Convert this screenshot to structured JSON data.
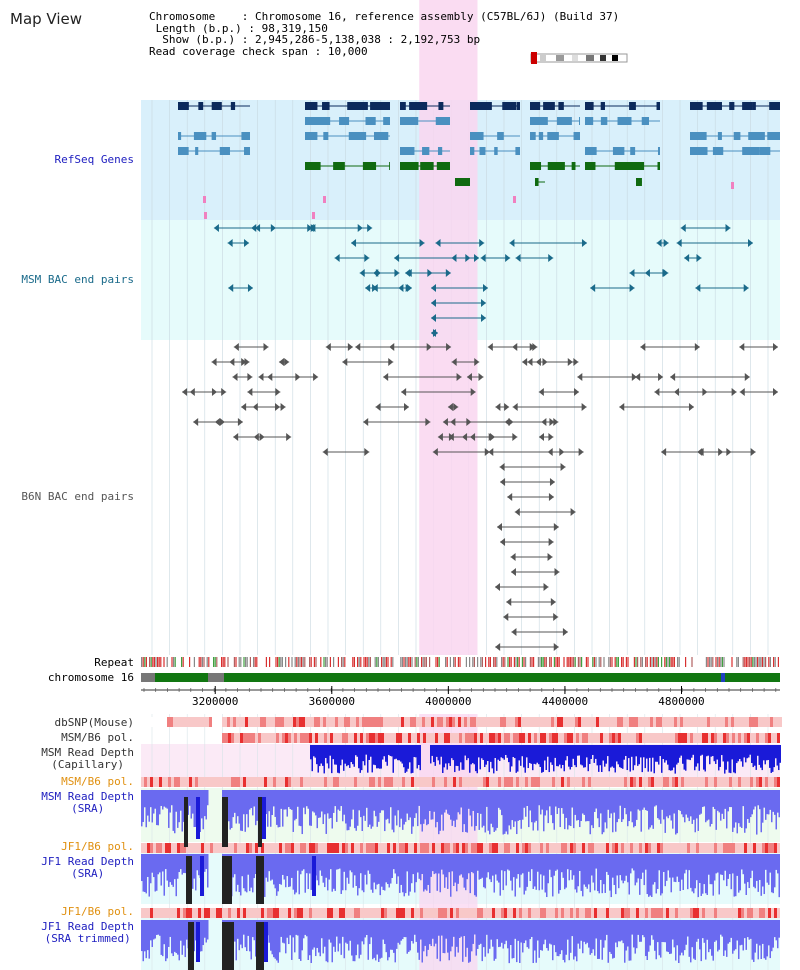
{
  "title": "Map View",
  "info": {
    "chromosome_label": "Chromosome",
    "chromosome_value": "Chromosome 16, reference assembly (C57BL/6J) (Build 37)",
    "length_label": "Length (b.p.)",
    "length_value": "98,319,150",
    "show_label": "Show (b.p.)",
    "show_value": "2,945,286-5,138,038 : 2,192,753 bp",
    "span_label": "Read coverage check span",
    "span_value": "10,000"
  },
  "labels": {
    "refseq": "RefSeq Genes",
    "msm_bac": "MSM BAC end pairs",
    "b6n_bac": "B6N BAC end pairs",
    "repeat": "Repeat",
    "chromosome": "chromosome 16",
    "dbsnp": "dbSNP(Mouse)",
    "msm_pol1": "MSM/B6 pol.",
    "msm_depth_cap_1": "MSM Read Depth",
    "msm_depth_cap_2": "(Capillary)",
    "msm_pol2": "MSM/B6 pol.",
    "msm_depth_sra_1": "MSM Read Depth",
    "msm_depth_sra_2": "(SRA)",
    "jf1_pol1": "JF1/B6 pol.",
    "jf1_depth_sra_1": "JF1 Read Depth",
    "jf1_depth_sra_2": "(SRA)",
    "jf1_pol2": "JF1/B6 pol.",
    "jf1_depth_trim_1": "JF1 Read Depth",
    "jf1_depth_trim_2": "(SRA trimmed)"
  },
  "axis": {
    "ticks": [
      "3200000",
      "3600000",
      "4000000",
      "4400000",
      "4800000"
    ],
    "range": [
      2945286,
      5138038
    ]
  },
  "highlight": {
    "start": 3900000,
    "end": 4100000
  },
  "colors": {
    "refseq_bg": "#d9f0fb",
    "bac_bg": "#e6fbfb",
    "gene_dark": "#0c2a5c",
    "gene_mid": "#4a90c0",
    "gene_green": "#106a10",
    "msm_bac": "#1a6a8a",
    "b6n_bac": "#555555",
    "highlight": "#f9d6f0",
    "depth_blue": "#1a1ad8",
    "label_blue": "#2020c0",
    "label_orange": "#e09010",
    "label_teal": "#1a6a8a"
  }
}
